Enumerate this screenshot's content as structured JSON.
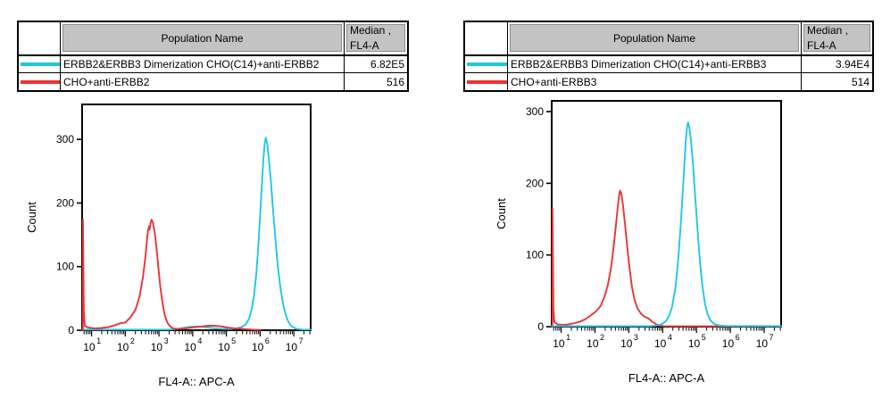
{
  "colors": {
    "cyan": "#1ec8eb",
    "red": "#f03232",
    "table_header_bg": "#c3c3c3",
    "axis": "#000000"
  },
  "panels": [
    {
      "table": {
        "columns": {
          "swatch": "",
          "population": "Population Name",
          "median": [
            "Median ,",
            "FL4-A"
          ]
        },
        "rows": [
          {
            "color": "cyan",
            "population": "ERBB2&ERBB3 Dimerization CHO(C14)+anti-ERBB2",
            "median": "6.82E5"
          },
          {
            "color": "red",
            "population": "CHO+anti-ERBB2",
            "median": "516"
          }
        ]
      }
    },
    {
      "table": {
        "columns": {
          "swatch": "",
          "population": "Population Name",
          "median": [
            "Median ,",
            "FL4-A"
          ]
        },
        "rows": [
          {
            "color": "cyan",
            "population": "ERBB2&ERBB3 Dimerization CHO(C14)+anti-ERBB3",
            "median": "3.94E4"
          },
          {
            "color": "red",
            "population": "CHO+anti-ERBB3",
            "median": "514"
          }
        ]
      }
    }
  ],
  "chart_data": [
    {
      "type": "line",
      "subtype": "flow-cytometry-histogram",
      "title": "",
      "xlabel": "FL4-A:: APC-A",
      "ylabel": "Count",
      "x_scale": "log10",
      "xlim_log10": [
        0.72,
        7.5
      ],
      "ylim": [
        0,
        355
      ],
      "yticks": [
        0,
        100,
        200,
        300
      ],
      "xtick_exponents": [
        1,
        2,
        3,
        4,
        5,
        6,
        7
      ],
      "grid": false,
      "legend": "table-above",
      "series": [
        {
          "name": "ERBB2&ERBB3 Dimerization CHO(C14)+anti-ERBB2",
          "color_key": "cyan",
          "median": "6.82E5",
          "peak_x": 1500000.0,
          "peak_count": 303,
          "points_log10x_count": [
            [
              0.72,
              1
            ],
            [
              1.5,
              1
            ],
            [
              2.5,
              1
            ],
            [
              3.3,
              1
            ],
            [
              3.55,
              2
            ],
            [
              3.75,
              4
            ],
            [
              3.95,
              5.5
            ],
            [
              4.15,
              6
            ],
            [
              4.35,
              5
            ],
            [
              4.55,
              3.5
            ],
            [
              4.75,
              2.5
            ],
            [
              4.95,
              2
            ],
            [
              5.15,
              2
            ],
            [
              5.3,
              3
            ],
            [
              5.45,
              5
            ],
            [
              5.57,
              9
            ],
            [
              5.67,
              18
            ],
            [
              5.75,
              33
            ],
            [
              5.82,
              55
            ],
            [
              5.89,
              90
            ],
            [
              5.95,
              135
            ],
            [
              6.0,
              180
            ],
            [
              6.05,
              228
            ],
            [
              6.1,
              270
            ],
            [
              6.14,
              295
            ],
            [
              6.17,
              303
            ],
            [
              6.21,
              293
            ],
            [
              6.26,
              270
            ],
            [
              6.32,
              235
            ],
            [
              6.38,
              192
            ],
            [
              6.45,
              145
            ],
            [
              6.52,
              103
            ],
            [
              6.6,
              68
            ],
            [
              6.68,
              42
            ],
            [
              6.76,
              24
            ],
            [
              6.84,
              13
            ],
            [
              6.92,
              7
            ],
            [
              7.0,
              4
            ],
            [
              7.1,
              2
            ],
            [
              7.25,
              1
            ],
            [
              7.5,
              1
            ]
          ]
        },
        {
          "name": "CHO+anti-ERBB2",
          "color_key": "red",
          "median": "516",
          "peak_x": 560,
          "peak_count": 174,
          "points_log10x_count": [
            [
              0.74,
              0
            ],
            [
              0.745,
              174
            ],
            [
              0.77,
              30
            ],
            [
              0.8,
              7
            ],
            [
              0.9,
              4
            ],
            [
              1.1,
              3
            ],
            [
              1.3,
              3.5
            ],
            [
              1.5,
              5
            ],
            [
              1.7,
              8
            ],
            [
              1.85,
              11
            ],
            [
              2.0,
              12
            ],
            [
              2.15,
              20
            ],
            [
              2.3,
              32
            ],
            [
              2.42,
              52
            ],
            [
              2.52,
              82
            ],
            [
              2.6,
              116
            ],
            [
              2.64,
              140
            ],
            [
              2.67,
              155
            ],
            [
              2.7,
              163
            ],
            [
              2.72,
              158
            ],
            [
              2.75,
              168
            ],
            [
              2.78,
              174
            ],
            [
              2.82,
              169
            ],
            [
              2.87,
              155
            ],
            [
              2.92,
              132
            ],
            [
              2.98,
              100
            ],
            [
              3.04,
              68
            ],
            [
              3.1,
              44
            ],
            [
              3.17,
              24
            ],
            [
              3.25,
              12
            ],
            [
              3.33,
              6
            ],
            [
              3.42,
              3
            ],
            [
              3.55,
              2
            ],
            [
              3.75,
              2.5
            ],
            [
              3.95,
              4
            ],
            [
              4.2,
              5.5
            ],
            [
              4.45,
              7
            ],
            [
              4.65,
              7
            ],
            [
              4.85,
              6
            ],
            [
              5.05,
              4
            ],
            [
              5.25,
              3
            ],
            [
              5.5,
              2
            ],
            [
              5.75,
              1
            ],
            [
              6.0,
              0.5
            ]
          ]
        }
      ]
    },
    {
      "type": "line",
      "subtype": "flow-cytometry-histogram",
      "title": "",
      "xlabel": "FL4-A:: APC-A",
      "ylabel": "Count",
      "x_scale": "log10",
      "xlim_log10": [
        0.72,
        7.5
      ],
      "ylim": [
        0,
        315
      ],
      "yticks": [
        0,
        100,
        200,
        300
      ],
      "xtick_exponents": [
        1,
        2,
        3,
        4,
        5,
        6,
        7
      ],
      "grid": false,
      "legend": "table-above",
      "series": [
        {
          "name": "CHO+anti-ERBB3",
          "color_key": "red",
          "median": "514",
          "peak_x": 550,
          "peak_count": 190,
          "points_log10x_count": [
            [
              0.74,
              0
            ],
            [
              0.745,
              165
            ],
            [
              0.77,
              25
            ],
            [
              0.8,
              6
            ],
            [
              0.9,
              3
            ],
            [
              1.05,
              2.5
            ],
            [
              1.2,
              3
            ],
            [
              1.4,
              5
            ],
            [
              1.55,
              7
            ],
            [
              1.7,
              10
            ],
            [
              1.85,
              15
            ],
            [
              2.0,
              20
            ],
            [
              2.1,
              25
            ],
            [
              2.18,
              30
            ],
            [
              2.28,
              42
            ],
            [
              2.38,
              58
            ],
            [
              2.48,
              84
            ],
            [
              2.56,
              115
            ],
            [
              2.62,
              142
            ],
            [
              2.67,
              166
            ],
            [
              2.71,
              182
            ],
            [
              2.74,
              190
            ],
            [
              2.78,
              185
            ],
            [
              2.83,
              168
            ],
            [
              2.89,
              141
            ],
            [
              2.95,
              112
            ],
            [
              3.02,
              82
            ],
            [
              3.09,
              56
            ],
            [
              3.17,
              37
            ],
            [
              3.26,
              25
            ],
            [
              3.36,
              18
            ],
            [
              3.46,
              14
            ],
            [
              3.56,
              12
            ],
            [
              3.64,
              9
            ],
            [
              3.72,
              6
            ],
            [
              3.82,
              3
            ],
            [
              3.92,
              1.5
            ],
            [
              4.05,
              0.7
            ],
            [
              4.3,
              0.5
            ],
            [
              7.5,
              0.5
            ]
          ]
        },
        {
          "name": "ERBB2&ERBB3 Dimerization CHO(C14)+anti-ERBB3",
          "color_key": "cyan",
          "median": "3.94E4",
          "peak_x": 56000.0,
          "peak_count": 285,
          "points_log10x_count": [
            [
              0.72,
              0.7
            ],
            [
              2.0,
              0.7
            ],
            [
              3.0,
              0.7
            ],
            [
              3.6,
              0.8
            ],
            [
              3.8,
              1.5
            ],
            [
              3.95,
              3
            ],
            [
              4.08,
              7
            ],
            [
              4.18,
              14
            ],
            [
              4.28,
              28
            ],
            [
              4.38,
              55
            ],
            [
              4.46,
              95
            ],
            [
              4.53,
              140
            ],
            [
              4.59,
              185
            ],
            [
              4.64,
              225
            ],
            [
              4.68,
              258
            ],
            [
              4.72,
              278
            ],
            [
              4.75,
              285
            ],
            [
              4.79,
              277
            ],
            [
              4.84,
              258
            ],
            [
              4.9,
              225
            ],
            [
              4.96,
              182
            ],
            [
              5.03,
              135
            ],
            [
              5.1,
              92
            ],
            [
              5.17,
              58
            ],
            [
              5.25,
              32
            ],
            [
              5.33,
              17
            ],
            [
              5.41,
              9
            ],
            [
              5.5,
              4.5
            ],
            [
              5.6,
              2.5
            ],
            [
              5.72,
              1.5
            ],
            [
              5.9,
              1
            ],
            [
              7.5,
              0.7
            ]
          ]
        }
      ]
    }
  ]
}
